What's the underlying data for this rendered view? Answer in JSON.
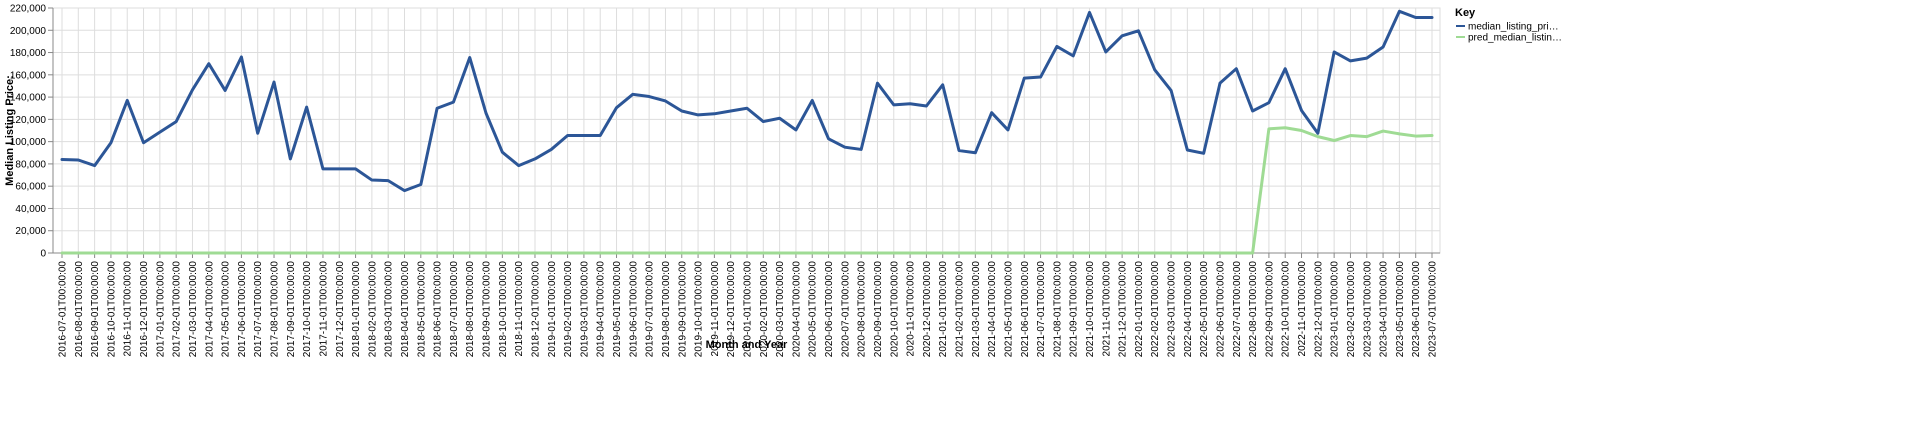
{
  "chart_data": {
    "type": "line",
    "xlabel": "Month and Year",
    "ylabel": "Median Listing Price:",
    "ylim": [
      0,
      220000
    ],
    "yticks": [
      "0",
      "20,000",
      "40,000",
      "60,000",
      "80,000",
      "100,000",
      "120,000",
      "140,000",
      "160,000",
      "180,000",
      "200,000",
      "220,000"
    ],
    "ytick_values": [
      0,
      20000,
      40000,
      60000,
      80000,
      100000,
      120000,
      140000,
      160000,
      180000,
      200000,
      220000
    ],
    "grid": true,
    "legend": {
      "title": "Key",
      "placement": "right",
      "labels": [
        "median_listing_pri…",
        "pred_median_listin…"
      ]
    },
    "x": [
      "2016-07-01T00:00:00",
      "2016-08-01T00:00:00",
      "2016-09-01T00:00:00",
      "2016-10-01T00:00:00",
      "2016-11-01T00:00:00",
      "2016-12-01T00:00:00",
      "2017-01-01T00:00:00",
      "2017-02-01T00:00:00",
      "2017-03-01T00:00:00",
      "2017-04-01T00:00:00",
      "2017-05-01T00:00:00",
      "2017-06-01T00:00:00",
      "2017-07-01T00:00:00",
      "2017-08-01T00:00:00",
      "2017-09-01T00:00:00",
      "2017-10-01T00:00:00",
      "2017-11-01T00:00:00",
      "2017-12-01T00:00:00",
      "2018-01-01T00:00:00",
      "2018-02-01T00:00:00",
      "2018-03-01T00:00:00",
      "2018-04-01T00:00:00",
      "2018-05-01T00:00:00",
      "2018-06-01T00:00:00",
      "2018-07-01T00:00:00",
      "2018-08-01T00:00:00",
      "2018-09-01T00:00:00",
      "2018-10-01T00:00:00",
      "2018-11-01T00:00:00",
      "2018-12-01T00:00:00",
      "2019-01-01T00:00:00",
      "2019-02-01T00:00:00",
      "2019-03-01T00:00:00",
      "2019-04-01T00:00:00",
      "2019-05-01T00:00:00",
      "2019-06-01T00:00:00",
      "2019-07-01T00:00:00",
      "2019-08-01T00:00:00",
      "2019-09-01T00:00:00",
      "2019-10-01T00:00:00",
      "2019-11-01T00:00:00",
      "2019-12-01T00:00:00",
      "2020-01-01T00:00:00",
      "2020-02-01T00:00:00",
      "2020-03-01T00:00:00",
      "2020-04-01T00:00:00",
      "2020-05-01T00:00:00",
      "2020-06-01T00:00:00",
      "2020-07-01T00:00:00",
      "2020-08-01T00:00:00",
      "2020-09-01T00:00:00",
      "2020-10-01T00:00:00",
      "2020-11-01T00:00:00",
      "2020-12-01T00:00:00",
      "2021-01-01T00:00:00",
      "2021-02-01T00:00:00",
      "2021-03-01T00:00:00",
      "2021-04-01T00:00:00",
      "2021-05-01T00:00:00",
      "2021-06-01T00:00:00",
      "2021-07-01T00:00:00",
      "2021-08-01T00:00:00",
      "2021-09-01T00:00:00",
      "2021-10-01T00:00:00",
      "2021-11-01T00:00:00",
      "2021-12-01T00:00:00",
      "2022-01-01T00:00:00",
      "2022-02-01T00:00:00",
      "2022-03-01T00:00:00",
      "2022-04-01T00:00:00",
      "2022-05-01T00:00:00",
      "2022-06-01T00:00:00",
      "2022-07-01T00:00:00",
      "2022-08-01T00:00:00",
      "2022-09-01T00:00:00",
      "2022-10-01T00:00:00",
      "2022-11-01T00:00:00",
      "2022-12-01T00:00:00",
      "2023-01-01T00:00:00",
      "2023-02-01T00:00:00",
      "2023-03-01T00:00:00",
      "2023-04-01T00:00:00",
      "2023-05-01T00:00:00",
      "2023-06-01T00:00:00",
      "2023-07-01T00:00:00"
    ],
    "series": [
      {
        "name": "median_listing_price",
        "color": "#2c5697",
        "values": [
          84000,
          83500,
          78500,
          99000,
          137000,
          99000,
          108500,
          118000,
          146500,
          170000,
          146000,
          176000,
          107500,
          153500,
          84500,
          131000,
          75500,
          75500,
          75500,
          65500,
          65000,
          56000,
          61500,
          130000,
          135500,
          175500,
          125500,
          90500,
          78500,
          84500,
          93000,
          105500,
          105500,
          105500,
          130500,
          142500,
          140500,
          136500,
          127500,
          124000,
          125000,
          127500,
          130000,
          118000,
          121000,
          110500,
          137000,
          102500,
          95000,
          93000,
          152500,
          133000,
          134000,
          132000,
          151000,
          92000,
          90000,
          126000,
          110500,
          157000,
          158000,
          185500,
          177000,
          216000,
          180500,
          195000,
          199500,
          164500,
          146000,
          92500,
          89500,
          152500,
          165500,
          127500,
          135000,
          165500,
          128000,
          107500,
          180500,
          172500,
          175000,
          185000,
          217000,
          211500,
          211500
        ]
      },
      {
        "name": "pred_median_listing_price",
        "color": "#9fdb94",
        "values": [
          0,
          0,
          0,
          0,
          0,
          0,
          0,
          0,
          0,
          0,
          0,
          0,
          0,
          0,
          0,
          0,
          0,
          0,
          0,
          0,
          0,
          0,
          0,
          0,
          0,
          0,
          0,
          0,
          0,
          0,
          0,
          0,
          0,
          0,
          0,
          0,
          0,
          0,
          0,
          0,
          0,
          0,
          0,
          0,
          0,
          0,
          0,
          0,
          0,
          0,
          0,
          0,
          0,
          0,
          0,
          0,
          0,
          0,
          0,
          0,
          0,
          0,
          0,
          0,
          0,
          0,
          0,
          0,
          0,
          0,
          0,
          0,
          0,
          0,
          111500,
          112500,
          110000,
          104500,
          101000,
          105500,
          104500,
          109500,
          107000,
          105000,
          105500
        ]
      }
    ]
  }
}
